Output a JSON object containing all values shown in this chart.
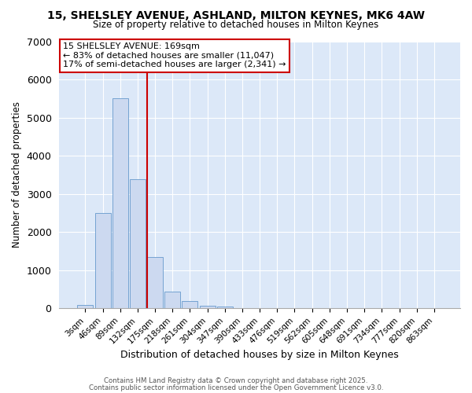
{
  "title1": "15, SHELSLEY AVENUE, ASHLAND, MILTON KEYNES, MK6 4AW",
  "title2": "Size of property relative to detached houses in Milton Keynes",
  "xlabel": "Distribution of detached houses by size in Milton Keynes",
  "ylabel": "Number of detached properties",
  "bar_labels": [
    "3sqm",
    "46sqm",
    "89sqm",
    "132sqm",
    "175sqm",
    "218sqm",
    "261sqm",
    "304sqm",
    "347sqm",
    "390sqm",
    "433sqm",
    "476sqm",
    "519sqm",
    "562sqm",
    "605sqm",
    "648sqm",
    "691sqm",
    "734sqm",
    "777sqm",
    "820sqm",
    "863sqm"
  ],
  "bar_values": [
    80,
    2500,
    5500,
    3380,
    1350,
    430,
    200,
    70,
    50,
    0,
    0,
    0,
    0,
    0,
    0,
    0,
    0,
    0,
    0,
    0,
    0
  ],
  "bar_color": "#ccd9f0",
  "bar_edgecolor": "#6699cc",
  "vline_color": "#cc0000",
  "ylim": [
    0,
    7000
  ],
  "yticks": [
    0,
    1000,
    2000,
    3000,
    4000,
    5000,
    6000,
    7000
  ],
  "annotation_title": "15 SHELSLEY AVENUE: 169sqm",
  "annotation_line1": "← 83% of detached houses are smaller (11,047)",
  "annotation_line2": "17% of semi-detached houses are larger (2,341) →",
  "annotation_box_edgecolor": "#cc0000",
  "footer1": "Contains HM Land Registry data © Crown copyright and database right 2025.",
  "footer2": "Contains public sector information licensed under the Open Government Licence v3.0.",
  "bg_color": "#ffffff",
  "plot_bg_color": "#dce8f8"
}
